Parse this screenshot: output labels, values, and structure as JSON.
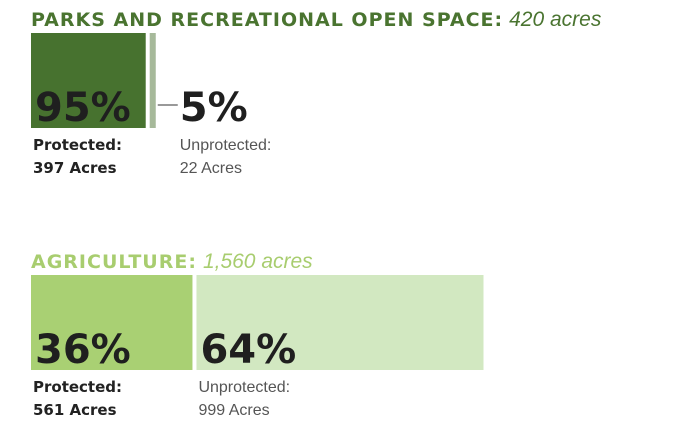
{
  "chart_data": [
    {
      "type": "bar",
      "title": "PARKS AND RECREATIONAL OPEN SPACE:",
      "subtitle": {
        "value": 420,
        "label": "420 acres"
      },
      "title_color": "#4a7430",
      "categories": [
        "Protected:",
        "Unprotected:"
      ],
      "values": [
        95,
        5
      ],
      "value_labels": [
        "95%",
        "5%"
      ],
      "acres": [
        "397 Acres",
        "22 Acres"
      ],
      "colors": [
        "#47722f",
        "#a6b99a"
      ]
    },
    {
      "type": "bar",
      "title": "AGRICULTURE:",
      "subtitle": {
        "value": 1560,
        "label": "1,560 acres"
      },
      "title_color": "#a8cd6f",
      "categories": [
        "Protected:",
        "Unprotected:"
      ],
      "values": [
        36,
        64
      ],
      "value_labels": [
        "36%",
        "64%"
      ],
      "acres": [
        "561 Acres",
        "999 Acres"
      ],
      "colors": [
        "#a9d073",
        "#d2e8c1"
      ]
    }
  ]
}
